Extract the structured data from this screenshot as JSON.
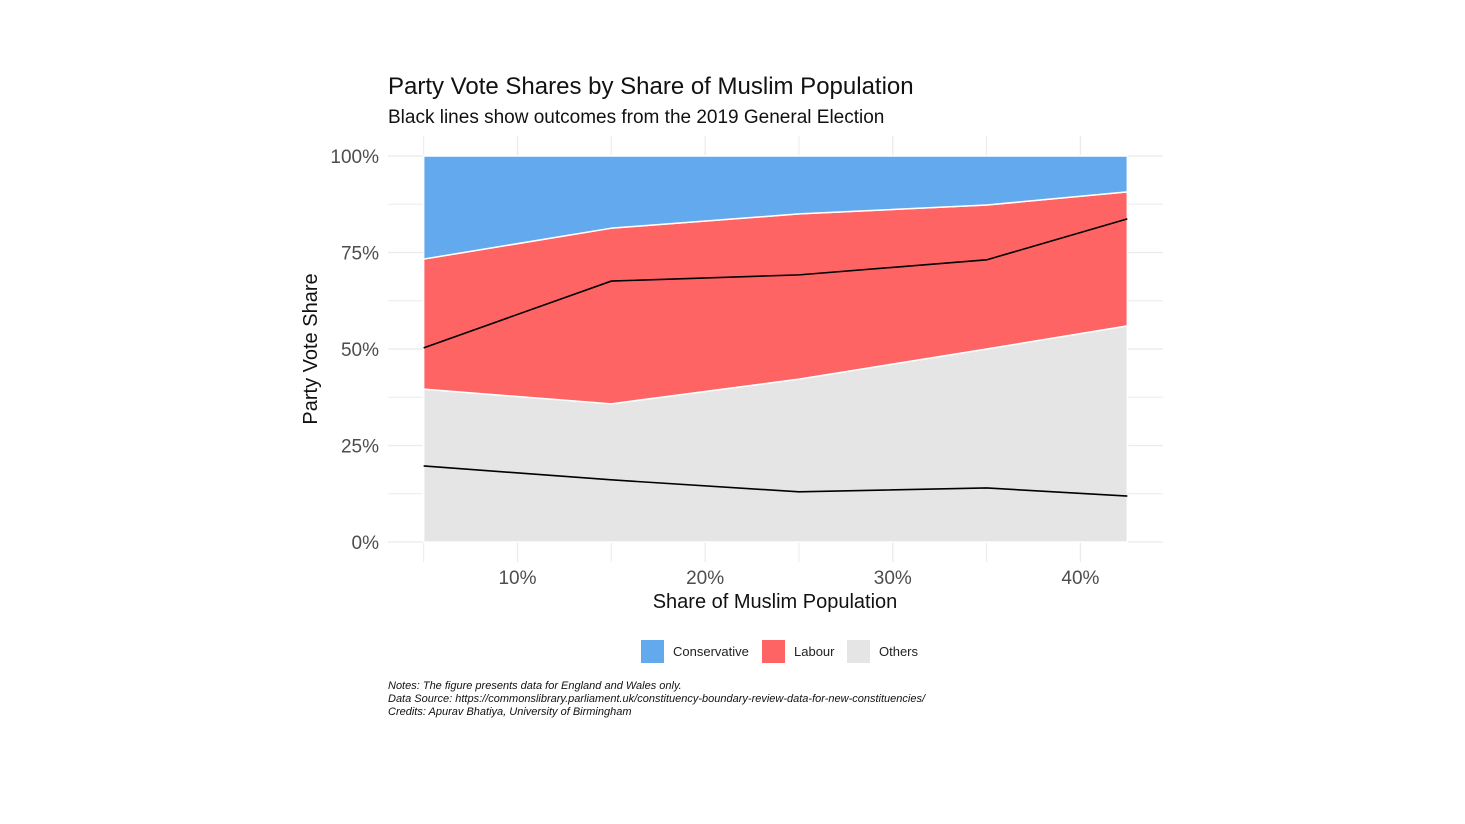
{
  "chart_data": {
    "type": "area",
    "title": "Party Vote Shares by Share of Muslim Population",
    "subtitle": "Black lines show outcomes from the 2019 General Election",
    "xlabel": "Share of Muslim Population",
    "ylabel": "Party Vote Share",
    "x": [
      5,
      15,
      25,
      35,
      42.5
    ],
    "xlim": [
      3.1,
      44.4
    ],
    "ylim": [
      0,
      100
    ],
    "x_ticks": [
      10,
      20,
      30,
      40
    ],
    "x_tick_labels": [
      "10%",
      "20%",
      "30%",
      "40%"
    ],
    "y_ticks": [
      0,
      25,
      50,
      75,
      100
    ],
    "y_tick_labels": [
      "0%",
      "25%",
      "50%",
      "75%",
      "100%"
    ],
    "grid": true,
    "stacked": true,
    "series": [
      {
        "name": "Others",
        "color": "#e5e5e5",
        "values": [
          39.6,
          35.8,
          42.2,
          50.0,
          56.0
        ]
      },
      {
        "name": "Labour",
        "color": "#ff6465",
        "values": [
          33.7,
          45.5,
          42.8,
          37.3,
          34.7
        ]
      },
      {
        "name": "Conservative",
        "color": "#62a9ee",
        "values": [
          26.7,
          18.7,
          15.0,
          12.7,
          9.3
        ]
      }
    ],
    "reference_lines_2019": [
      {
        "name": "Others 2019",
        "color": "#000000",
        "values": [
          19.7,
          16.1,
          13.0,
          14.0,
          11.9
        ]
      },
      {
        "name": "Others + Labour 2019",
        "color": "#000000",
        "values": [
          50.3,
          67.6,
          69.2,
          73.1,
          83.7
        ]
      }
    ],
    "legend": {
      "placement": "bottom",
      "entries": [
        "Conservative",
        "Labour",
        "Others"
      ]
    },
    "notes": [
      "Notes: The figure presents data for England and Wales only.",
      "Data Source: https://commonslibrary.parliament.uk/constituency-boundary-review-data-for-new-constituencies/",
      "Credits: Apurav Bhatiya, University of Birmingham"
    ]
  }
}
